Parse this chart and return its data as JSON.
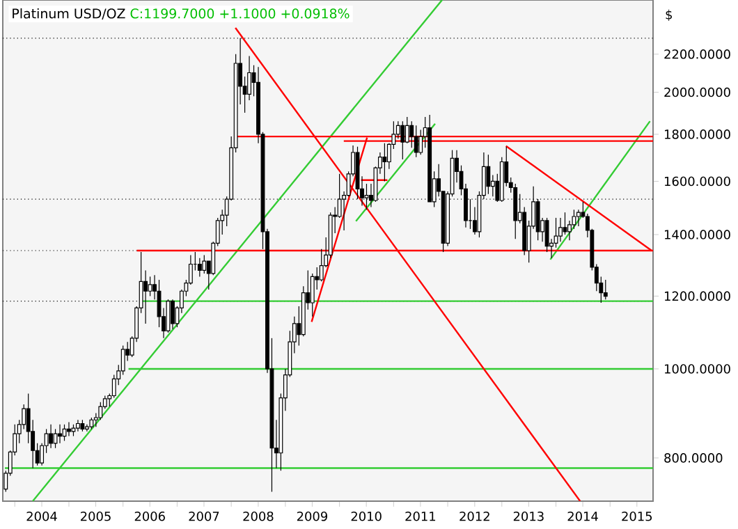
{
  "chart_data": {
    "type": "candlestick",
    "title": "Platinum USD/OZ",
    "subtitle": "C:1199.7000 +1.1000 +0.0918%",
    "ylabel": "$",
    "log": "y",
    "xlim": [
      "2003-10-12",
      "2015-10-18"
    ],
    "ylim": [
      718,
      2520
    ],
    "xticks": [
      {
        "value": "2004-01-01",
        "label": null
      },
      {
        "value": "2004-07-01",
        "label": "2004"
      },
      {
        "value": "2005-01-01",
        "label": null
      },
      {
        "value": "2005-07-01",
        "label": "2005"
      },
      {
        "value": "2006-01-01",
        "label": null
      },
      {
        "value": "2006-07-01",
        "label": "2006"
      },
      {
        "value": "2007-01-01",
        "label": null
      },
      {
        "value": "2007-07-01",
        "label": "2007"
      },
      {
        "value": "2008-01-01",
        "label": null
      },
      {
        "value": "2008-07-01",
        "label": "2008"
      },
      {
        "value": "2009-01-01",
        "label": null
      },
      {
        "value": "2009-07-01",
        "label": "2009"
      },
      {
        "value": "2010-01-01",
        "label": null
      },
      {
        "value": "2010-07-01",
        "label": "2010"
      },
      {
        "value": "2011-01-01",
        "label": null
      },
      {
        "value": "2011-07-01",
        "label": "2011"
      },
      {
        "value": "2012-01-01",
        "label": null
      },
      {
        "value": "2012-07-01",
        "label": "2012"
      },
      {
        "value": "2013-01-01",
        "label": null
      },
      {
        "value": "2013-07-01",
        "label": "2013"
      },
      {
        "value": "2014-01-01",
        "label": null
      },
      {
        "value": "2014-07-01",
        "label": "2014"
      },
      {
        "value": "2015-01-01",
        "label": null
      },
      {
        "value": "2015-07-01",
        "label": "2015"
      }
    ],
    "yticks": [
      {
        "value": 800,
        "label": "800.0000"
      },
      {
        "value": 1000,
        "label": "1000.0000"
      },
      {
        "value": 1200,
        "label": "1200.0000"
      },
      {
        "value": 1400,
        "label": "1400.0000"
      },
      {
        "value": 1600,
        "label": "1600.0000"
      },
      {
        "value": 1800,
        "label": "1800.0000"
      },
      {
        "value": 2000,
        "label": "2000.0000"
      },
      {
        "value": 2200,
        "label": "2200.0000"
      }
    ],
    "x": [
      "2003-11",
      "2003-12",
      "2004-01",
      "2004-02",
      "2004-03",
      "2004-04",
      "2004-05",
      "2004-06",
      "2004-07",
      "2004-08",
      "2004-09",
      "2004-10",
      "2004-11",
      "2004-12",
      "2005-01",
      "2005-02",
      "2005-03",
      "2005-04",
      "2005-05",
      "2005-06",
      "2005-07",
      "2005-08",
      "2005-09",
      "2005-10",
      "2005-11",
      "2005-12",
      "2006-01",
      "2006-02",
      "2006-03",
      "2006-04",
      "2006-05",
      "2006-06",
      "2006-07",
      "2006-08",
      "2006-09",
      "2006-10",
      "2006-11",
      "2006-12",
      "2007-01",
      "2007-02",
      "2007-03",
      "2007-04",
      "2007-05",
      "2007-06",
      "2007-07",
      "2007-08",
      "2007-09",
      "2007-10",
      "2007-11",
      "2007-12",
      "2008-01",
      "2008-02",
      "2008-03",
      "2008-04",
      "2008-05",
      "2008-06",
      "2008-07",
      "2008-08",
      "2008-09",
      "2008-10",
      "2008-11",
      "2008-12",
      "2009-01",
      "2009-02",
      "2009-03",
      "2009-04",
      "2009-05",
      "2009-06",
      "2009-07",
      "2009-08",
      "2009-09",
      "2009-10",
      "2009-11",
      "2009-12",
      "2010-01",
      "2010-02",
      "2010-03",
      "2010-04",
      "2010-05",
      "2010-06",
      "2010-07",
      "2010-08",
      "2010-09",
      "2010-10",
      "2010-11",
      "2010-12",
      "2011-01",
      "2011-02",
      "2011-03",
      "2011-04",
      "2011-05",
      "2011-06",
      "2011-07",
      "2011-08",
      "2011-09",
      "2011-10",
      "2011-11",
      "2011-12",
      "2012-01",
      "2012-02",
      "2012-03",
      "2012-04",
      "2012-05",
      "2012-06",
      "2012-07",
      "2012-08",
      "2012-09",
      "2012-10",
      "2012-11",
      "2012-12",
      "2013-01",
      "2013-02",
      "2013-03",
      "2013-04",
      "2013-05",
      "2013-06",
      "2013-07",
      "2013-08",
      "2013-09",
      "2013-10",
      "2013-11",
      "2013-12",
      "2014-01",
      "2014-02",
      "2014-03",
      "2014-04",
      "2014-05",
      "2014-06",
      "2014-07",
      "2014-08",
      "2014-09",
      "2014-10",
      "2014-11",
      "2014-12"
    ],
    "ohlc": [
      [
        740,
        775,
        735,
        770
      ],
      [
        770,
        815,
        765,
        812
      ],
      [
        812,
        870,
        805,
        850
      ],
      [
        850,
        880,
        830,
        870
      ],
      [
        870,
        915,
        860,
        905
      ],
      [
        905,
        940,
        830,
        855
      ],
      [
        855,
        880,
        780,
        815
      ],
      [
        815,
        830,
        785,
        790
      ],
      [
        790,
        830,
        785,
        825
      ],
      [
        825,
        860,
        810,
        850
      ],
      [
        850,
        870,
        820,
        830
      ],
      [
        830,
        860,
        820,
        850
      ],
      [
        850,
        870,
        830,
        845
      ],
      [
        845,
        870,
        835,
        860
      ],
      [
        860,
        875,
        845,
        855
      ],
      [
        855,
        870,
        845,
        862
      ],
      [
        862,
        880,
        855,
        872
      ],
      [
        872,
        880,
        855,
        860
      ],
      [
        860,
        870,
        855,
        865
      ],
      [
        865,
        885,
        860,
        880
      ],
      [
        880,
        895,
        865,
        885
      ],
      [
        885,
        920,
        880,
        910
      ],
      [
        910,
        935,
        905,
        928
      ],
      [
        928,
        940,
        910,
        935
      ],
      [
        935,
        985,
        930,
        975
      ],
      [
        975,
        1010,
        960,
        995
      ],
      [
        995,
        1060,
        985,
        1050
      ],
      [
        1050,
        1070,
        1020,
        1035
      ],
      [
        1035,
        1085,
        1030,
        1080
      ],
      [
        1080,
        1170,
        1070,
        1165
      ],
      [
        1165,
        1340,
        1150,
        1245
      ],
      [
        1245,
        1280,
        1120,
        1215
      ],
      [
        1215,
        1260,
        1200,
        1235
      ],
      [
        1235,
        1265,
        1190,
        1215
      ],
      [
        1215,
        1250,
        1110,
        1140
      ],
      [
        1140,
        1165,
        1080,
        1100
      ],
      [
        1100,
        1190,
        1095,
        1185
      ],
      [
        1185,
        1190,
        1105,
        1120
      ],
      [
        1120,
        1170,
        1110,
        1165
      ],
      [
        1165,
        1220,
        1150,
        1215
      ],
      [
        1215,
        1250,
        1200,
        1240
      ],
      [
        1240,
        1330,
        1235,
        1300
      ],
      [
        1300,
        1340,
        1280,
        1300
      ],
      [
        1300,
        1320,
        1260,
        1280
      ],
      [
        1280,
        1330,
        1270,
        1310
      ],
      [
        1310,
        1310,
        1220,
        1270
      ],
      [
        1270,
        1375,
        1265,
        1370
      ],
      [
        1370,
        1460,
        1360,
        1450
      ],
      [
        1450,
        1490,
        1400,
        1470
      ],
      [
        1470,
        1540,
        1430,
        1530
      ],
      [
        1530,
        1790,
        1525,
        1740
      ],
      [
        1740,
        2200,
        1720,
        2150
      ],
      [
        2150,
        2290,
        1940,
        2030
      ],
      [
        2030,
        2080,
        1900,
        1990
      ],
      [
        1990,
        2190,
        1960,
        2100
      ],
      [
        2100,
        2140,
        1980,
        2050
      ],
      [
        2050,
        2130,
        1760,
        1800
      ],
      [
        1800,
        1810,
        1350,
        1410
      ],
      [
        1410,
        1420,
        990,
        1000
      ],
      [
        1000,
        1080,
        735,
        820
      ],
      [
        820,
        880,
        780,
        810
      ],
      [
        810,
        940,
        775,
        930
      ],
      [
        930,
        1000,
        900,
        985
      ],
      [
        985,
        1100,
        980,
        1070
      ],
      [
        1070,
        1140,
        1040,
        1120
      ],
      [
        1120,
        1170,
        1060,
        1090
      ],
      [
        1090,
        1230,
        1085,
        1210
      ],
      [
        1210,
        1280,
        1160,
        1180
      ],
      [
        1180,
        1270,
        1140,
        1260
      ],
      [
        1260,
        1290,
        1220,
        1250
      ],
      [
        1250,
        1350,
        1245,
        1295
      ],
      [
        1295,
        1390,
        1290,
        1330
      ],
      [
        1330,
        1480,
        1320,
        1470
      ],
      [
        1470,
        1500,
        1405,
        1465
      ],
      [
        1465,
        1630,
        1460,
        1530
      ],
      [
        1530,
        1560,
        1415,
        1545
      ],
      [
        1545,
        1640,
        1540,
        1630
      ],
      [
        1630,
        1750,
        1620,
        1720
      ],
      [
        1720,
        1745,
        1530,
        1570
      ],
      [
        1570,
        1620,
        1505,
        1535
      ],
      [
        1535,
        1590,
        1490,
        1545
      ],
      [
        1545,
        1590,
        1500,
        1525
      ],
      [
        1525,
        1660,
        1520,
        1655
      ],
      [
        1655,
        1720,
        1630,
        1700
      ],
      [
        1700,
        1760,
        1600,
        1680
      ],
      [
        1680,
        1760,
        1650,
        1755
      ],
      [
        1755,
        1860,
        1735,
        1800
      ],
      [
        1800,
        1860,
        1780,
        1840
      ],
      [
        1840,
        1860,
        1690,
        1765
      ],
      [
        1765,
        1880,
        1760,
        1840
      ],
      [
        1840,
        1860,
        1740,
        1790
      ],
      [
        1790,
        1840,
        1700,
        1720
      ],
      [
        1720,
        1820,
        1710,
        1790
      ],
      [
        1790,
        1880,
        1740,
        1830
      ],
      [
        1830,
        1890,
        1520,
        1520
      ],
      [
        1520,
        1640,
        1500,
        1610
      ],
      [
        1610,
        1670,
        1540,
        1560
      ],
      [
        1560,
        1560,
        1340,
        1370
      ],
      [
        1370,
        1560,
        1360,
        1550
      ],
      [
        1550,
        1730,
        1540,
        1695
      ],
      [
        1695,
        1730,
        1595,
        1640
      ],
      [
        1640,
        1665,
        1545,
        1570
      ],
      [
        1570,
        1590,
        1425,
        1450
      ],
      [
        1450,
        1530,
        1420,
        1450
      ],
      [
        1450,
        1500,
        1400,
        1410
      ],
      [
        1410,
        1560,
        1390,
        1545
      ],
      [
        1545,
        1720,
        1530,
        1660
      ],
      [
        1660,
        1710,
        1550,
        1580
      ],
      [
        1580,
        1625,
        1540,
        1600
      ],
      [
        1600,
        1630,
        1520,
        1525
      ],
      [
        1525,
        1700,
        1520,
        1680
      ],
      [
        1680,
        1745,
        1580,
        1595
      ],
      [
        1595,
        1615,
        1555,
        1575
      ],
      [
        1575,
        1590,
        1385,
        1450
      ],
      [
        1450,
        1550,
        1440,
        1480
      ],
      [
        1480,
        1500,
        1330,
        1345
      ],
      [
        1345,
        1450,
        1305,
        1430
      ],
      [
        1430,
        1580,
        1420,
        1520
      ],
      [
        1520,
        1530,
        1380,
        1410
      ],
      [
        1410,
        1460,
        1375,
        1450
      ],
      [
        1450,
        1460,
        1340,
        1360
      ],
      [
        1360,
        1385,
        1320,
        1370
      ],
      [
        1370,
        1460,
        1355,
        1395
      ],
      [
        1395,
        1460,
        1375,
        1425
      ],
      [
        1425,
        1480,
        1400,
        1410
      ],
      [
        1410,
        1450,
        1380,
        1435
      ],
      [
        1435,
        1490,
        1420,
        1465
      ],
      [
        1465,
        1490,
        1430,
        1480
      ],
      [
        1480,
        1520,
        1460,
        1465
      ],
      [
        1465,
        1475,
        1390,
        1415
      ],
      [
        1415,
        1420,
        1280,
        1290
      ],
      [
        1290,
        1300,
        1215,
        1240
      ],
      [
        1240,
        1260,
        1180,
        1210
      ],
      [
        1210,
        1250,
        1190,
        1199.7
      ]
    ],
    "series": [
      {
        "type": "line",
        "color": "#33cc33",
        "x": [
          "2003-10-26",
          "2015-10-18"
        ],
        "values": [
          780,
          780
        ]
      },
      {
        "type": "line",
        "color": "#33cc33",
        "x": [
          "2006-02-07",
          "2015-10-18"
        ],
        "values": [
          1000,
          1000
        ]
      },
      {
        "type": "line",
        "color": "#33cc33",
        "x": [
          "2006-05-01",
          "2015-10-18"
        ],
        "values": [
          1185,
          1185
        ]
      },
      {
        "type": "line",
        "color": "#33cc33",
        "x": [
          "2004-05-01",
          "2011-11-24"
        ],
        "values": [
          718,
          2520
        ]
      },
      {
        "type": "line",
        "color": "#33cc33",
        "x": [
          "2010-04-22",
          "2011-10-08"
        ],
        "values": [
          1448,
          1848
        ]
      },
      {
        "type": "line",
        "color": "#33cc33",
        "x": [
          "2013-11-24",
          "2015-09-27"
        ],
        "values": [
          1315,
          1860
        ]
      },
      {
        "type": "line",
        "color": "#ff0000",
        "x": [
          "2006-04-04",
          "2015-10-18"
        ],
        "values": [
          1345,
          1345
        ]
      },
      {
        "type": "line",
        "color": "#ff0000",
        "x": [
          "2008-02-06",
          "2015-10-18"
        ],
        "values": [
          1790,
          1790
        ]
      },
      {
        "type": "line",
        "color": "#ff0000",
        "x": [
          "2010-01-30",
          "2015-10-18"
        ],
        "values": [
          1770,
          1770
        ]
      },
      {
        "type": "line",
        "color": "#ff0000",
        "x": [
          "2010-05-27",
          "2010-11-20"
        ],
        "values": [
          1605,
          1605
        ]
      },
      {
        "type": "line",
        "color": "#ff0000",
        "x": [
          "2008-01-29",
          "2014-06-13"
        ],
        "values": [
          2350,
          718
        ]
      },
      {
        "type": "line",
        "color": "#ff0000",
        "x": [
          "2009-06-27",
          "2010-07-06"
        ],
        "values": [
          1125,
          1785
        ]
      },
      {
        "type": "line",
        "color": "#ff0000",
        "x": [
          "2013-01-29",
          "2015-10-08"
        ],
        "values": [
          1748,
          1345
        ]
      }
    ],
    "ref_lines": [
      {
        "axis": "y",
        "value": 2290,
        "color": "#000000",
        "line_style": "dotted"
      },
      {
        "axis": "y",
        "value": 1530,
        "color": "#000000",
        "line_style": "dotted"
      },
      {
        "axis": "y",
        "value": 1345,
        "color": "#000000",
        "line_style": "dotted"
      },
      {
        "axis": "y",
        "value": 1185,
        "color": "#000000",
        "line_style": "dotted"
      }
    ]
  }
}
